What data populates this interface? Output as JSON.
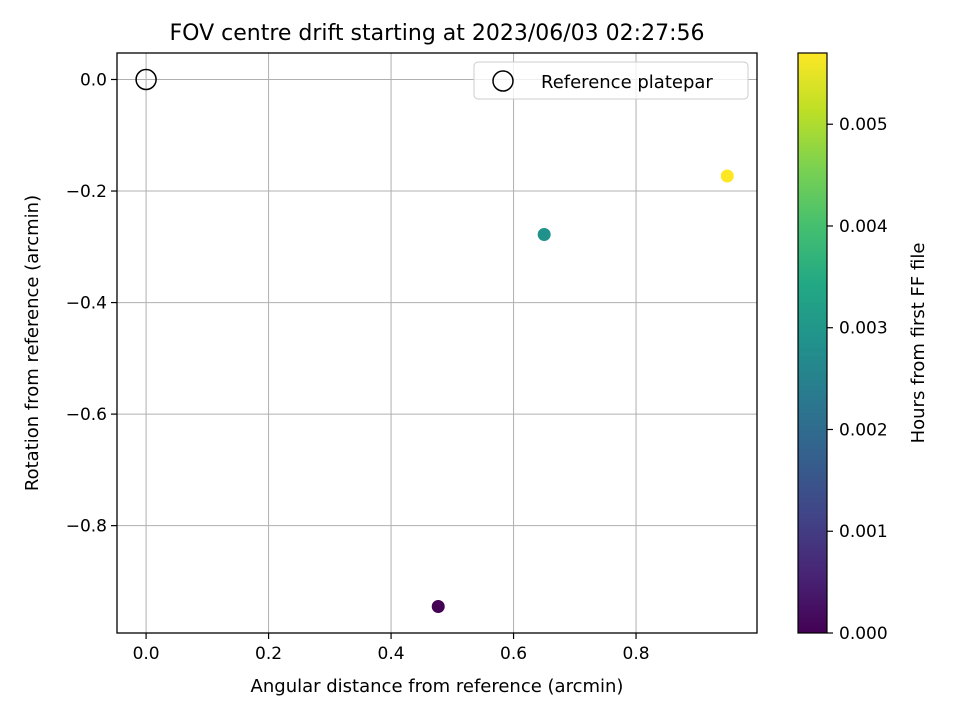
{
  "chart_data": {
    "type": "scatter",
    "title": "FOV centre drift starting at 2023/06/03 02:27:56",
    "xlabel": "Angular distance from reference (arcmin)",
    "ylabel": "Rotation from reference (arcmin)",
    "xlim": [
      -0.0475,
      0.9975
    ],
    "ylim": [
      -0.9925,
      0.0475
    ],
    "x_ticks": [
      0.0,
      0.2,
      0.4,
      0.6,
      0.8
    ],
    "x_tick_labels": [
      "0.0",
      "0.2",
      "0.4",
      "0.6",
      "0.8"
    ],
    "y_ticks": [
      0.0,
      -0.2,
      -0.4,
      -0.6,
      -0.8
    ],
    "y_tick_labels": [
      "0.0",
      "−0.2",
      "−0.4",
      "−0.6",
      "−0.8"
    ],
    "grid": true,
    "legend": {
      "placement": "upper-right",
      "entries": [
        "Reference platepar"
      ]
    },
    "reference_point": {
      "x": 0.0,
      "y": 0.0,
      "marker": "open-circle",
      "color": "#000000"
    },
    "points": [
      {
        "x": 0.477,
        "y": -0.945,
        "hours": 0.0
      },
      {
        "x": 0.65,
        "y": -0.278,
        "hours": 0.00285
      },
      {
        "x": 0.949,
        "y": -0.173,
        "hours": 0.0057
      }
    ],
    "colorbar": {
      "label": "Hours from first FF file",
      "colormap": "viridis",
      "range": [
        0.0,
        0.0057
      ],
      "ticks": [
        0.0,
        0.001,
        0.002,
        0.003,
        0.004,
        0.005
      ],
      "tick_labels": [
        "0.000",
        "0.001",
        "0.002",
        "0.003",
        "0.004",
        "0.005"
      ]
    }
  }
}
